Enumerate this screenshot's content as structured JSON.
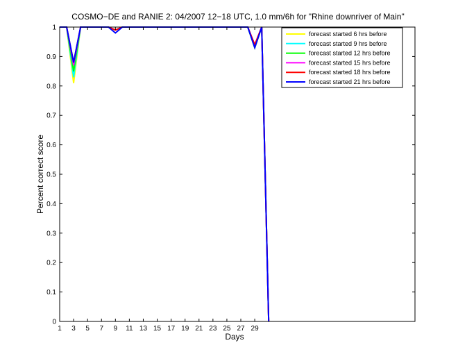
{
  "chart_data": {
    "type": "line",
    "title": "COSMO−DE and RANIE 2: 04/2007 12−18 UTC, 1.0 mm/6h for \"Rhine downriver of Main\"",
    "xlabel": "Days",
    "ylabel": "Percent correct score",
    "xlim": [
      1,
      52
    ],
    "ylim": [
      0,
      1
    ],
    "xticks": [
      1,
      3,
      5,
      7,
      9,
      11,
      13,
      15,
      17,
      19,
      21,
      23,
      25,
      27,
      29
    ],
    "yticks": [
      0,
      0.1,
      0.2,
      0.3,
      0.4,
      0.5,
      0.6,
      0.7,
      0.8,
      0.9,
      1
    ],
    "ytick_labels": [
      "0",
      "0.1",
      "0.2",
      "0.3",
      "0.4",
      "0.5",
      "0.6",
      "0.7",
      "0.8",
      "0.9",
      "1"
    ],
    "grid": false,
    "legend_position": "top-right",
    "series": [
      {
        "name": "forecast started 6 hrs before",
        "color": "#ffff00",
        "x": [
          1,
          2,
          3,
          4,
          5,
          6,
          7,
          8,
          9,
          10,
          11,
          12,
          13,
          14,
          15,
          16,
          17,
          18,
          19,
          20,
          21,
          22,
          23,
          24,
          25,
          26,
          27,
          28,
          29,
          30,
          31
        ],
        "y": [
          1,
          1,
          0.81,
          1,
          1,
          1,
          1,
          1,
          0.99,
          1,
          1,
          1,
          1,
          1,
          1,
          1,
          1,
          1,
          1,
          1,
          1,
          1,
          1,
          1,
          1,
          1,
          1,
          1,
          0.93,
          1,
          0
        ]
      },
      {
        "name": "forecast started 9 hrs before",
        "color": "#00ffff",
        "x": [
          1,
          2,
          3,
          4,
          5,
          6,
          7,
          8,
          9,
          10,
          11,
          12,
          13,
          14,
          15,
          16,
          17,
          18,
          19,
          20,
          21,
          22,
          23,
          24,
          25,
          26,
          27,
          28,
          29,
          30,
          31
        ],
        "y": [
          1,
          1,
          0.83,
          1,
          1,
          1,
          1,
          1,
          0.99,
          1,
          1,
          1,
          1,
          1,
          1,
          1,
          1,
          1,
          1,
          1,
          1,
          1,
          1,
          1,
          1,
          1,
          1,
          1,
          0.93,
          1,
          0
        ]
      },
      {
        "name": "forecast started 12 hrs before",
        "color": "#00ff00",
        "x": [
          1,
          2,
          3,
          4,
          5,
          6,
          7,
          8,
          9,
          10,
          11,
          12,
          13,
          14,
          15,
          16,
          17,
          18,
          19,
          20,
          21,
          22,
          23,
          24,
          25,
          26,
          27,
          28,
          29,
          30,
          31
        ],
        "y": [
          1,
          1,
          0.85,
          1,
          1,
          1,
          1,
          1,
          0.99,
          1,
          1,
          1,
          1,
          1,
          1,
          1,
          1,
          1,
          1,
          1,
          1,
          1,
          1,
          1,
          1,
          1,
          1,
          1,
          0.93,
          1,
          0
        ]
      },
      {
        "name": "forecast started 15 hrs before",
        "color": "#ff00ff",
        "x": [
          1,
          2,
          3,
          4,
          5,
          6,
          7,
          8,
          9,
          10,
          11,
          12,
          13,
          14,
          15,
          16,
          17,
          18,
          19,
          20,
          21,
          22,
          23,
          24,
          25,
          26,
          27,
          28,
          29,
          30,
          31
        ],
        "y": [
          1,
          1,
          0.87,
          1,
          1,
          1,
          1,
          1,
          0.99,
          1,
          1,
          1,
          1,
          1,
          1,
          1,
          1,
          1,
          1,
          1,
          1,
          1,
          1,
          1,
          1,
          1,
          1,
          1,
          0.94,
          1,
          0
        ]
      },
      {
        "name": "forecast started 18 hrs before",
        "color": "#ff0000",
        "x": [
          1,
          2,
          3,
          4,
          5,
          6,
          7,
          8,
          9,
          10,
          11,
          12,
          13,
          14,
          15,
          16,
          17,
          18,
          19,
          20,
          21,
          22,
          23,
          24,
          25,
          26,
          27,
          28,
          29,
          30,
          31
        ],
        "y": [
          1,
          1,
          0.88,
          1,
          1,
          1,
          1,
          1,
          0.99,
          1,
          1,
          1,
          1,
          1,
          1,
          1,
          1,
          1,
          1,
          1,
          1,
          1,
          1,
          1,
          1,
          1,
          1,
          1,
          0.94,
          1,
          0
        ]
      },
      {
        "name": "forecast started 21 hrs before",
        "color": "#0000ff",
        "x": [
          1,
          2,
          3,
          4,
          5,
          6,
          7,
          8,
          9,
          10,
          11,
          12,
          13,
          14,
          15,
          16,
          17,
          18,
          19,
          20,
          21,
          22,
          23,
          24,
          25,
          26,
          27,
          28,
          29,
          30,
          31
        ],
        "y": [
          1,
          1,
          0.88,
          1,
          1,
          1,
          1,
          1,
          0.98,
          1,
          1,
          1,
          1,
          1,
          1,
          1,
          1,
          1,
          1,
          1,
          1,
          1,
          1,
          1,
          1,
          1,
          1,
          1,
          0.93,
          1,
          0
        ]
      }
    ]
  }
}
